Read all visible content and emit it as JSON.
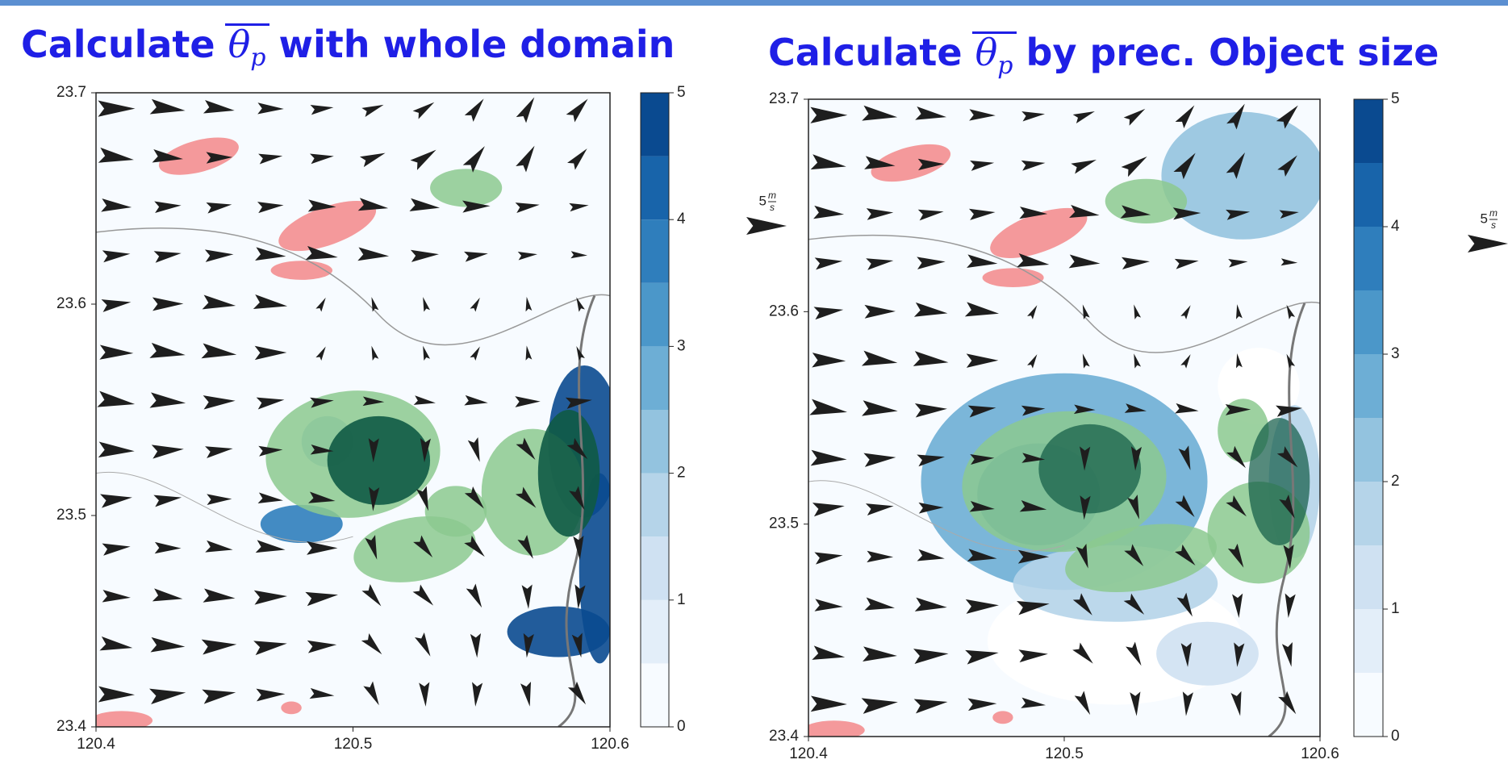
{
  "panels": [
    {
      "title": {
        "prefix": "Calculate",
        "symbol": "θ",
        "subscript": "p",
        "suffix": "with whole domain"
      },
      "xlim": [
        120.4,
        120.6
      ],
      "ylim": [
        23.4,
        23.7
      ],
      "xticks": [
        120.4,
        120.5,
        120.6
      ],
      "yticks": [
        23.4,
        23.5,
        23.6,
        23.7
      ],
      "colorbar": {
        "lim": [
          0,
          5
        ],
        "ticks": [
          0,
          1,
          2,
          3,
          4,
          5
        ],
        "levels": [
          0,
          0.5,
          1,
          1.5,
          2,
          2.5,
          3,
          3.5,
          4,
          4.5,
          5
        ],
        "colors": [
          "#f7fbff",
          "#e3eef9",
          "#cfe1f2",
          "#b5d4e9",
          "#93c3df",
          "#6daed5",
          "#4b97c9",
          "#2f7ebc",
          "#1864aa",
          "#0a4a90"
        ]
      }
    },
    {
      "title": {
        "prefix": "Calculate",
        "symbol": "θ",
        "subscript": "p",
        "suffix": "by prec. Object size"
      },
      "xlim": [
        120.4,
        120.6
      ],
      "ylim": [
        23.4,
        23.7
      ],
      "xticks": [
        120.4,
        120.5,
        120.6
      ],
      "yticks": [
        23.4,
        23.5,
        23.6,
        23.7
      ],
      "colorbar": {
        "lim": [
          0,
          5
        ],
        "ticks": [
          0,
          1,
          2,
          3,
          4,
          5
        ],
        "levels": [
          0,
          0.5,
          1,
          1.5,
          2,
          2.5,
          3,
          3.5,
          4,
          4.5,
          5
        ],
        "colors": [
          "#f7fbff",
          "#e3eef9",
          "#cfe1f2",
          "#b5d4e9",
          "#93c3df",
          "#6daed5",
          "#4b97c9",
          "#2f7ebc",
          "#1864aa",
          "#0a4a90"
        ]
      }
    }
  ],
  "vector_key": {
    "value": "5",
    "unit_num": "m",
    "unit_den": "s"
  }
}
